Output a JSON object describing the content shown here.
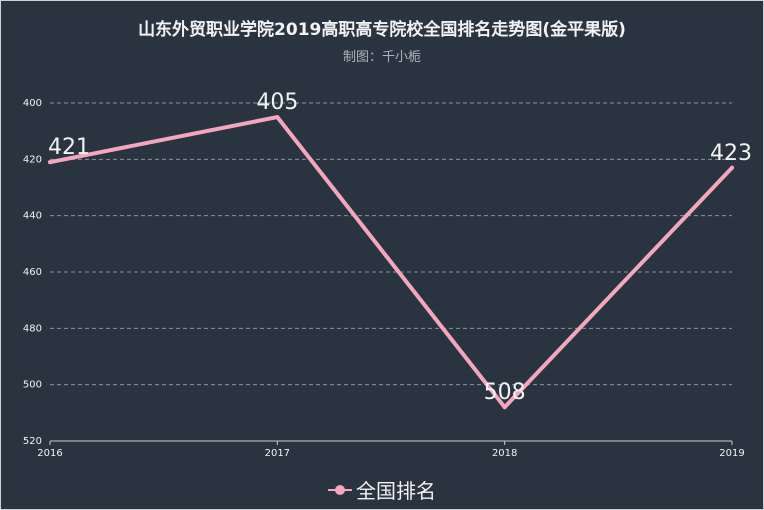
{
  "header": {
    "title": "山东外贸职业学院2019高职高专院校全国排名走势图(金平果版)",
    "subtitle": "制图：千小栀"
  },
  "colors": {
    "background": "#2a3441",
    "line": "#f4a6bf",
    "grid": "#8a939e",
    "text": "#f2f2f2"
  },
  "chart_data": {
    "type": "line",
    "categories": [
      "2016",
      "2017",
      "2018",
      "2019"
    ],
    "series": [
      {
        "name": "全国排名",
        "values": [
          421,
          405,
          508,
          423
        ]
      }
    ],
    "y_ticks": [
      400,
      420,
      440,
      460,
      480,
      500,
      520
    ],
    "ylim": [
      400,
      520
    ],
    "y_inverted": true,
    "grid": "horizontal-dashed",
    "legend": "bottom-center"
  }
}
